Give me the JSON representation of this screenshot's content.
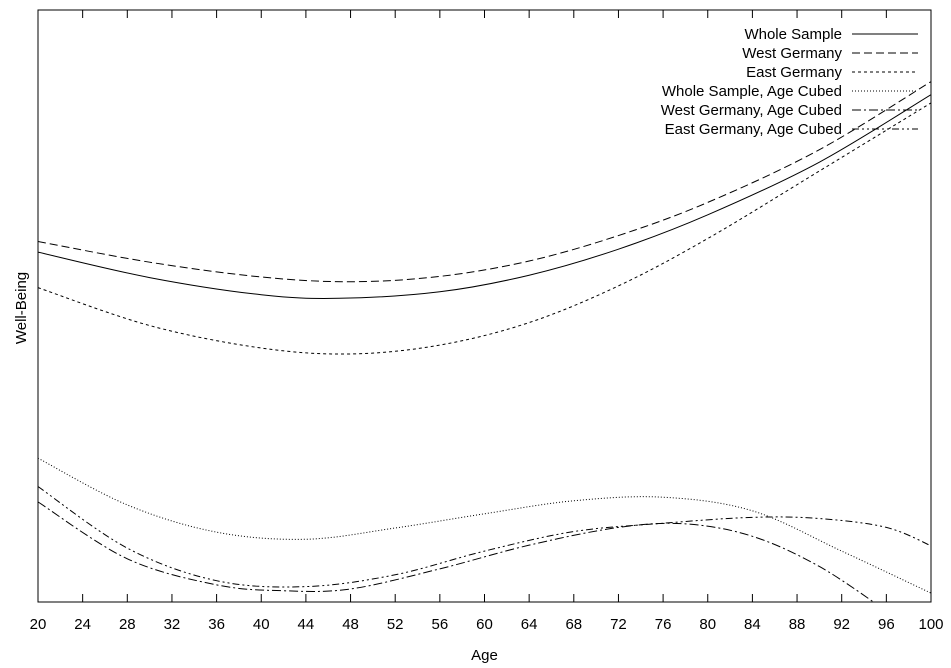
{
  "chart_data": {
    "type": "line",
    "title": "",
    "xlabel": "Age",
    "ylabel": "Well-Being",
    "xlim": [
      20,
      100
    ],
    "ylim": [
      0,
      100
    ],
    "y_tick_labels": "none",
    "x_ticks": [
      20,
      24,
      28,
      32,
      36,
      40,
      44,
      48,
      52,
      56,
      60,
      64,
      68,
      72,
      76,
      80,
      84,
      88,
      92,
      96,
      100
    ],
    "grid": false,
    "legend_position": "top-right",
    "series": [
      {
        "name": "Whole Sample",
        "style": "solid",
        "x": [
          20,
          30,
          40,
          47,
          56,
          64,
          72,
          80,
          90,
          100
        ],
        "y": [
          59.1,
          54.8,
          51.9,
          51.3,
          52.4,
          55.2,
          59.6,
          65.4,
          74.3,
          85.7
        ]
      },
      {
        "name": "West Germany",
        "style": "dashed",
        "x": [
          20,
          30,
          40,
          48,
          56,
          64,
          72,
          80,
          90,
          100
        ],
        "y": [
          60.9,
          57.4,
          54.9,
          54.1,
          55.0,
          57.6,
          61.9,
          67.5,
          76.4,
          87.9
        ]
      },
      {
        "name": "East Germany",
        "style": "short-dash",
        "x": [
          20,
          30,
          40,
          48,
          56,
          64,
          72,
          80,
          90,
          100
        ],
        "y": [
          53.1,
          46.7,
          42.9,
          41.9,
          43.4,
          47.2,
          53.4,
          61.4,
          72.8,
          84.3
        ]
      },
      {
        "name": "Whole Sample, Age Cubed",
        "style": "dotted",
        "x": [
          20,
          28,
          36,
          44,
          52,
          60,
          68,
          76,
          84,
          92,
          100
        ],
        "y": [
          24.3,
          16.4,
          11.8,
          10.6,
          12.5,
          14.9,
          17.1,
          17.7,
          15.4,
          8.6,
          1.5
        ]
      },
      {
        "name": "West Germany, Age Cubed",
        "style": "dash-dot",
        "x": [
          20,
          28,
          36,
          42,
          48,
          56,
          64,
          72,
          78,
          84,
          90,
          96
        ],
        "y": [
          16.9,
          7.3,
          2.9,
          1.9,
          2.2,
          5.6,
          9.6,
          12.6,
          13.2,
          11.1,
          6.0,
          -1.5
        ]
      },
      {
        "name": "East Germany, Age Cubed",
        "style": "dash-dot-dot",
        "x": [
          20,
          28,
          36,
          44,
          52,
          60,
          68,
          76,
          84,
          90,
          96,
          100
        ],
        "y": [
          19.5,
          9.1,
          3.6,
          2.6,
          4.6,
          8.6,
          11.9,
          13.3,
          14.3,
          14.1,
          12.6,
          9.5
        ]
      }
    ]
  }
}
